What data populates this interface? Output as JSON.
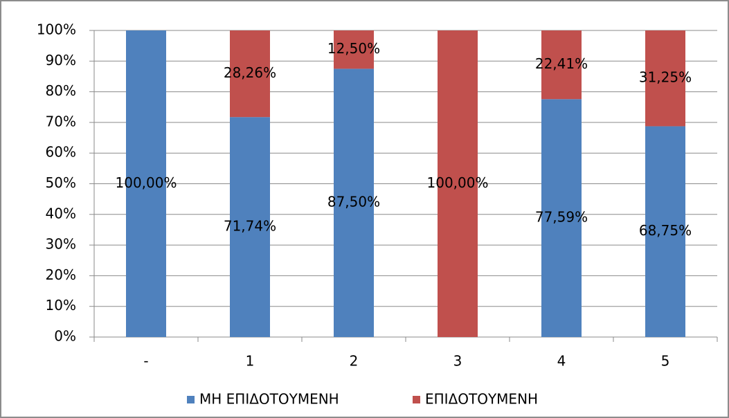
{
  "chart_data": {
    "type": "stacked_bar",
    "categories": [
      "-",
      "1",
      "2",
      "3",
      "4",
      "5"
    ],
    "series": [
      {
        "name": "ΜΗ ΕΠΙΔΟΤΟΥΜΕΝΗ",
        "color": "#4f81bd",
        "values": [
          100,
          71.74,
          87.5,
          0,
          77.59,
          68.75
        ],
        "value_labels": [
          "100,00%",
          "71,74%",
          "87,50%",
          null,
          "77,59%",
          "68,75%"
        ]
      },
      {
        "name": "ΕΠΙΔΟΤΟΥΜΕΝΗ",
        "color": "#c0504d",
        "values": [
          0,
          28.26,
          12.5,
          100,
          22.41,
          31.25
        ],
        "value_labels": [
          null,
          "28,26%",
          "12,50%",
          "100,00%",
          "22,41%",
          "31,25%"
        ]
      }
    ],
    "ylim": [
      0,
      100
    ],
    "yticks": [
      {
        "value": 0,
        "label": "0%"
      },
      {
        "value": 10,
        "label": "10%"
      },
      {
        "value": 20,
        "label": "20%"
      },
      {
        "value": 30,
        "label": "30%"
      },
      {
        "value": 40,
        "label": "40%"
      },
      {
        "value": 50,
        "label": "50%"
      },
      {
        "value": 60,
        "label": "60%"
      },
      {
        "value": 70,
        "label": "70%"
      },
      {
        "value": 80,
        "label": "80%"
      },
      {
        "value": 90,
        "label": "90%"
      },
      {
        "value": 100,
        "label": "100%"
      }
    ],
    "grid": true,
    "legend": "bottom"
  }
}
